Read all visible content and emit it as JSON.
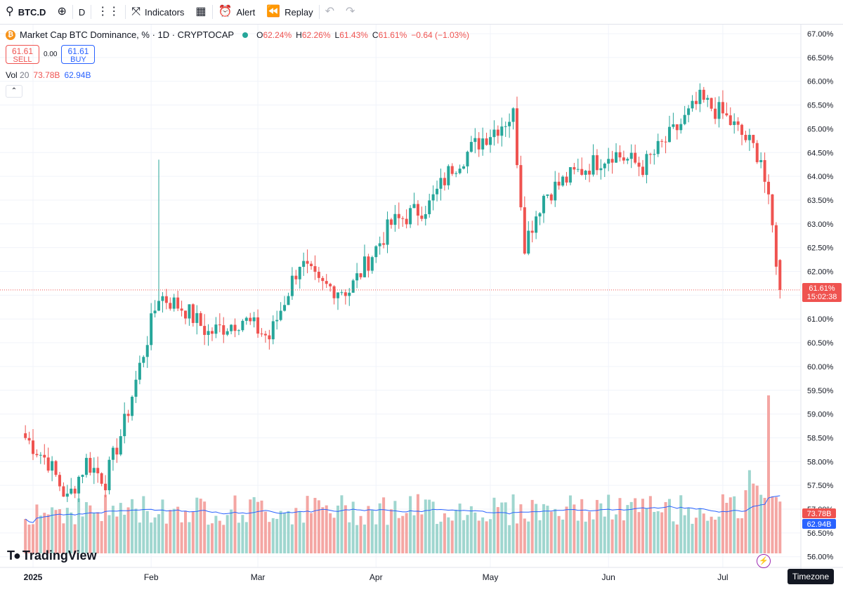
{
  "toolbar": {
    "symbol": "BTC.D",
    "interval": "D",
    "indicators_label": "Indicators",
    "alert_label": "Alert",
    "replay_label": "Replay"
  },
  "legend": {
    "title": "Market Cap BTC Dominance, % · 1D · CRYPTOCAP",
    "o_key": "O",
    "o": "62.24%",
    "h_key": "H",
    "h": "62.26%",
    "l_key": "L",
    "l": "61.43%",
    "c_key": "C",
    "c": "61.61%",
    "change": "−0.64 (−1.03%)"
  },
  "trade": {
    "sell_price": "61.61",
    "sell_label": "SELL",
    "spread": "0.00",
    "buy_price": "61.61",
    "buy_label": "BUY"
  },
  "volume_legend": {
    "label": "Vol",
    "length": "20",
    "volume": "73.78B",
    "ma": "62.94B"
  },
  "price_tag": {
    "value": "61.61%",
    "countdown": "15:02:38"
  },
  "volume_tags": {
    "volume": "73.78B",
    "ma": "62.94B"
  },
  "brand": {
    "name": "TradingView"
  },
  "timezone_label": "Timezone",
  "colors": {
    "up": "#26a69a",
    "down": "#ef5350",
    "vol_up": "#9fd6cf",
    "vol_down": "#f4a6a3",
    "ma": "#2962ff"
  },
  "chart_data": {
    "type": "candlestick",
    "title": "Market Cap BTC Dominance, % · 1D · CRYPTOCAP",
    "y_unit": "%",
    "ylim": [
      55.8,
      67.2
    ],
    "y_ticks": [
      "67.00%",
      "66.50%",
      "66.00%",
      "65.50%",
      "65.00%",
      "64.50%",
      "64.00%",
      "63.50%",
      "63.00%",
      "62.50%",
      "62.00%",
      "61.50%",
      "61.00%",
      "60.50%",
      "60.00%",
      "59.50%",
      "59.00%",
      "58.50%",
      "58.00%",
      "57.50%",
      "57.00%",
      "56.50%",
      "56.00%"
    ],
    "x_ticks": [
      "2025",
      "Feb",
      "Mar",
      "Apr",
      "May",
      "Jun",
      "Jul"
    ],
    "grid": true,
    "anchors": [
      {
        "date": "Dec 30",
        "close": 58.5
      },
      {
        "date": "Jan 05",
        "close": 58.0
      },
      {
        "date": "Jan 10",
        "close": 57.2
      },
      {
        "date": "Jan 15",
        "close": 58.0
      },
      {
        "date": "Jan 20",
        "close": 57.6
      },
      {
        "date": "Jan 25",
        "close": 58.8
      },
      {
        "date": "Feb 03",
        "close": 61.5
      },
      {
        "date": "Feb 10",
        "close": 61.2
      },
      {
        "date": "Feb 16",
        "close": 60.7
      },
      {
        "date": "Feb 25",
        "close": 61.0
      },
      {
        "date": "Mar 04",
        "close": 60.6
      },
      {
        "date": "Mar 12",
        "close": 62.2
      },
      {
        "date": "Mar 17",
        "close": 61.7
      },
      {
        "date": "Mar 25",
        "close": 61.6
      },
      {
        "date": "Apr 05",
        "close": 63.0
      },
      {
        "date": "Apr 15",
        "close": 63.4
      },
      {
        "date": "Apr 21",
        "close": 64.2
      },
      {
        "date": "Apr 29",
        "close": 64.8
      },
      {
        "date": "May 07",
        "close": 65.3
      },
      {
        "date": "May 10",
        "close": 62.6
      },
      {
        "date": "May 15",
        "close": 63.6
      },
      {
        "date": "May 22",
        "close": 64.0
      },
      {
        "date": "Jun 02",
        "close": 64.5
      },
      {
        "date": "Jun 10",
        "close": 64.2
      },
      {
        "date": "Jun 20",
        "close": 65.1
      },
      {
        "date": "Jun 25",
        "close": 65.6
      },
      {
        "date": "Jul 01",
        "close": 65.3
      },
      {
        "date": "Jul 08",
        "close": 64.7
      },
      {
        "date": "Jul 11",
        "close": 64.4
      },
      {
        "date": "Jul 14",
        "close": 62.9
      },
      {
        "date": "Jul 16",
        "close": 61.61
      }
    ],
    "last_candle": {
      "open": 62.24,
      "high": 62.26,
      "low": 61.43,
      "close": 61.61
    },
    "volume": {
      "last": "73.78B",
      "ma20_last": "62.94B",
      "ma_length": 20
    }
  }
}
